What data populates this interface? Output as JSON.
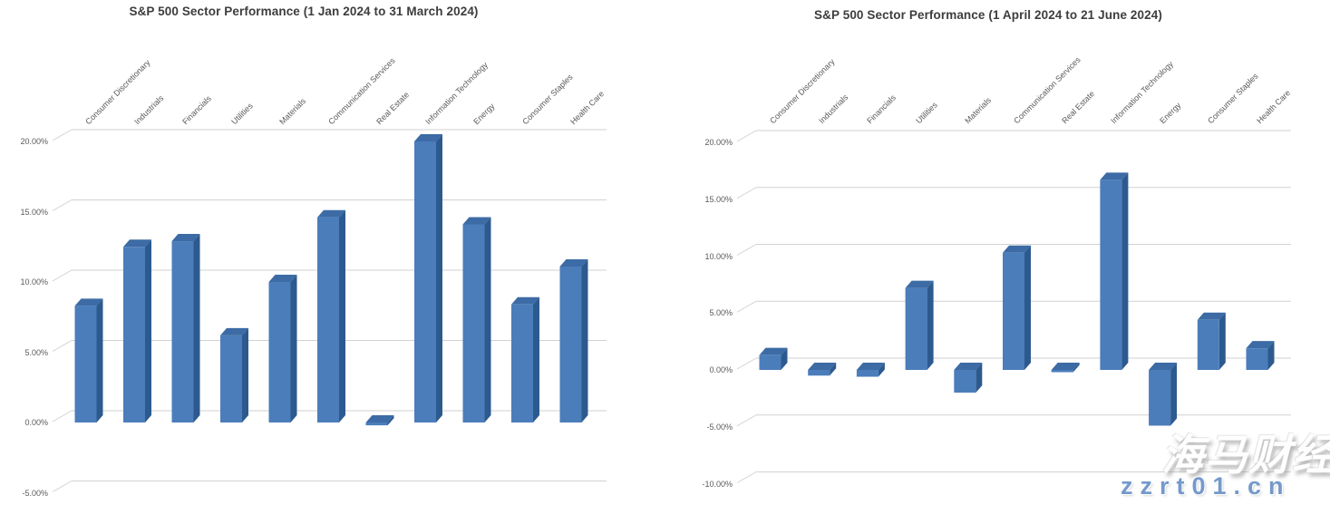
{
  "watermark": {
    "line1": "海马财经",
    "line2": "zzrt01.cn",
    "url_color": "#7599cb"
  },
  "bar_colors": {
    "front": "#4b7dbb",
    "top": "#3c6ba5",
    "side": "#2d5a8e"
  },
  "gridline_color": "#d2d2d2",
  "chart_data": [
    {
      "type": "bar",
      "style": "3d-column",
      "title": "S&P 500 Sector Performance (1 Jan 2024 to 31 March 2024)",
      "xlabel": "",
      "ylabel": "",
      "unit": "%",
      "grid": true,
      "legend": "none",
      "ylim": [
        -5,
        20
      ],
      "categories": [
        "Consumer Discretionary",
        "Industrials",
        "Financials",
        "Utilities",
        "Materials",
        "Communication Services",
        "Real Estate",
        "Information Technology",
        "Energy",
        "Consumer Staples",
        "Health Care"
      ],
      "values": [
        8.3,
        12.5,
        12.9,
        6.2,
        10.0,
        14.6,
        -0.2,
        20.0,
        14.1,
        8.4,
        11.1
      ],
      "y_ticks": [
        {
          "label": "20.00%",
          "value": 20
        },
        {
          "label": "15.00%",
          "value": 15
        },
        {
          "label": "10.00%",
          "value": 10
        },
        {
          "label": "5.00%",
          "value": 5
        },
        {
          "label": "0.00%",
          "value": 0
        },
        {
          "label": "-5.00%",
          "value": -5
        }
      ]
    },
    {
      "type": "bar",
      "style": "3d-column",
      "title": "S&P 500 Sector Performance (1 April 2024 to 21 June 2024)",
      "xlabel": "",
      "ylabel": "",
      "unit": "%",
      "grid": true,
      "legend": "none",
      "ylim": [
        -10,
        20
      ],
      "categories": [
        "Consumer Discretionary",
        "Industrials",
        "Financials",
        "Utilities",
        "Materials",
        "Communication Services",
        "Real Estate",
        "Information Technology",
        "Energy",
        "Consumer Staples",
        "Health Care"
      ],
      "values": [
        1.3,
        -0.5,
        -0.6,
        7.2,
        -2.0,
        10.3,
        -0.2,
        16.7,
        -4.9,
        4.4,
        1.9
      ],
      "y_ticks": [
        {
          "label": "20.00%",
          "value": 20
        },
        {
          "label": "15.00%",
          "value": 15
        },
        {
          "label": "10.00%",
          "value": 10
        },
        {
          "label": "5.00%",
          "value": 5
        },
        {
          "label": "0.00%",
          "value": 0
        },
        {
          "label": "-5.00%",
          "value": -5
        },
        {
          "label": "-10.00%",
          "value": -10
        }
      ]
    }
  ]
}
